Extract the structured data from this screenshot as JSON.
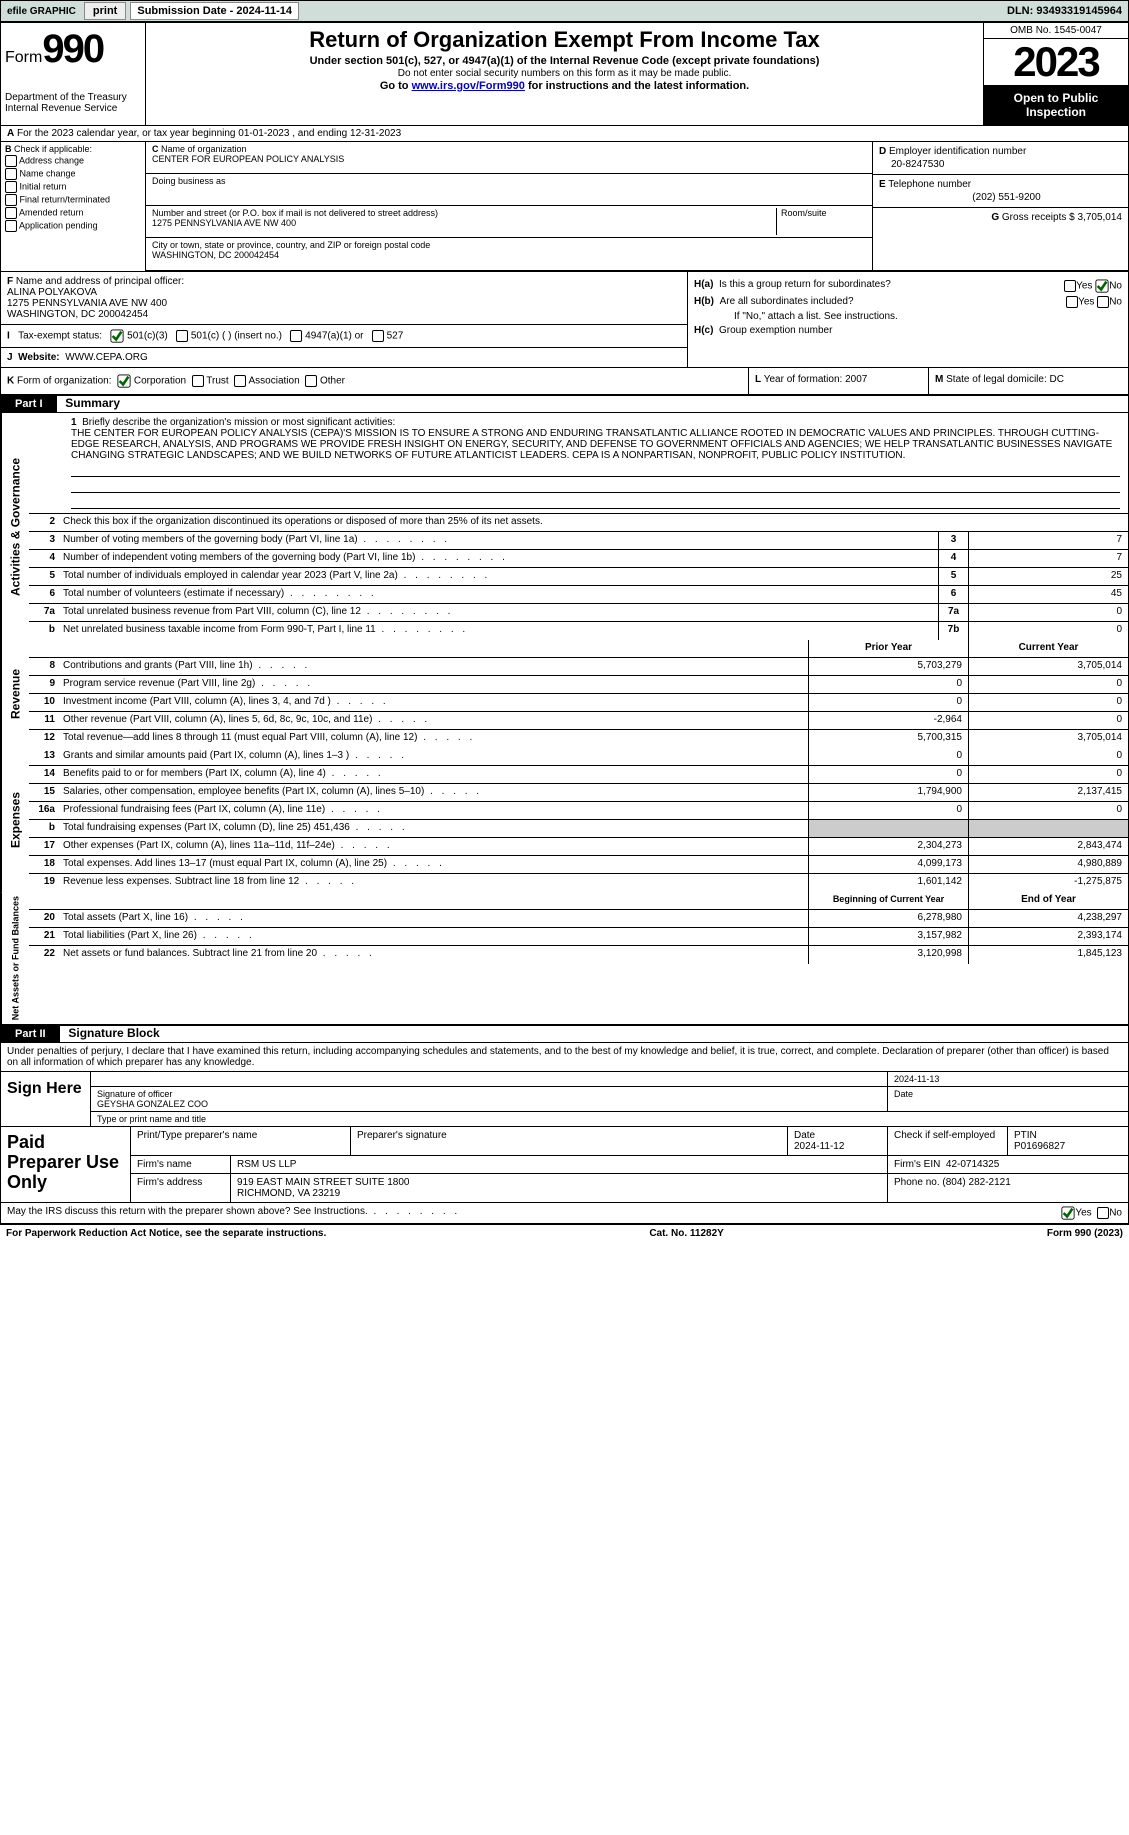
{
  "top": {
    "efile": "efile GRAPHIC",
    "print": "print",
    "sub_label": "Submission Date - 2024-11-14",
    "dln": "DLN: 93493319145964"
  },
  "hdr": {
    "form": "Form",
    "num": "990",
    "dept": "Department of the Treasury\nInternal Revenue Service",
    "title": "Return of Organization Exempt From Income Tax",
    "sub1": "Under section 501(c), 527, or 4947(a)(1) of the Internal Revenue Code (except private foundations)",
    "sub2": "Do not enter social security numbers on this form as it may be made public.",
    "sub3_pre": "Go to ",
    "sub3_link": "www.irs.gov/Form990",
    "sub3_post": " for instructions and the latest information.",
    "omb": "OMB No. 1545-0047",
    "year": "2023",
    "pub": "Open to Public Inspection"
  },
  "a": {
    "text": "For the 2023 calendar year, or tax year beginning 01-01-2023   , and ending 12-31-2023"
  },
  "b": {
    "label": "Check if applicable:",
    "items": [
      "Address change",
      "Name change",
      "Initial return",
      "Final return/terminated",
      "Amended return",
      "Application pending"
    ]
  },
  "c": {
    "name_label": "Name of organization",
    "name": "CENTER FOR EUROPEAN POLICY ANALYSIS",
    "dba_label": "Doing business as",
    "addr_label": "Number and street (or P.O. box if mail is not delivered to street address)",
    "room_label": "Room/suite",
    "addr": "1275 PENNSYLVANIA AVE NW 400",
    "city_label": "City or town, state or province, country, and ZIP or foreign postal code",
    "city": "WASHINGTON, DC  200042454"
  },
  "d": {
    "label": "Employer identification number",
    "val": "20-8247530"
  },
  "e": {
    "label": "Telephone number",
    "val": "(202) 551-9200"
  },
  "g": {
    "label": "Gross receipts $",
    "val": "3,705,014"
  },
  "f": {
    "label": "Name and address of principal officer:",
    "name": "ALINA POLYAKOVA",
    "addr1": "1275 PENNSYLVANIA AVE NW 400",
    "addr2": "WASHINGTON, DC  200042454"
  },
  "h": {
    "a": "Is this a group return for subordinates?",
    "b": "Are all subordinates included?",
    "note": "If \"No,\" attach a list. See instructions.",
    "c": "Group exemption number"
  },
  "i": {
    "label": "Tax-exempt status:",
    "opts": [
      "501(c)(3)",
      "501(c) (  ) (insert no.)",
      "4947(a)(1) or",
      "527"
    ]
  },
  "j": {
    "label": "Website:",
    "val": "WWW.CEPA.ORG"
  },
  "k": {
    "label": "Form of organization:",
    "opts": [
      "Corporation",
      "Trust",
      "Association",
      "Other"
    ]
  },
  "l": {
    "label": "Year of formation:",
    "val": "2007"
  },
  "m": {
    "label": "State of legal domicile:",
    "val": "DC"
  },
  "part1": {
    "hdr": "Part I",
    "title": "Summary",
    "mission_label": "Briefly describe the organization's mission or most significant activities:",
    "mission": "THE CENTER FOR EUROPEAN POLICY ANALYSIS (CEPA)'S MISSION IS TO ENSURE A STRONG AND ENDURING TRANSATLANTIC ALLIANCE ROOTED IN DEMOCRATIC VALUES AND PRINCIPLES. THROUGH CUTTING-EDGE RESEARCH, ANALYSIS, AND PROGRAMS WE PROVIDE FRESH INSIGHT ON ENERGY, SECURITY, AND DEFENSE TO GOVERNMENT OFFICIALS AND AGENCIES; WE HELP TRANSATLANTIC BUSINESSES NAVIGATE CHANGING STRATEGIC LANDSCAPES; AND WE BUILD NETWORKS OF FUTURE ATLANTICIST LEADERS. CEPA IS A NONPARTISAN, NONPROFIT, PUBLIC POLICY INSTITUTION.",
    "l2": "Check this box      if the organization discontinued its operations or disposed of more than 25% of its net assets.",
    "side": {
      "ag": "Activities & Governance",
      "rev": "Revenue",
      "exp": "Expenses",
      "na": "Net Assets or Fund Balances"
    },
    "rows_ag": [
      {
        "n": "3",
        "t": "Number of voting members of the governing body (Part VI, line 1a)",
        "b": "3",
        "v": "7"
      },
      {
        "n": "4",
        "t": "Number of independent voting members of the governing body (Part VI, line 1b)",
        "b": "4",
        "v": "7"
      },
      {
        "n": "5",
        "t": "Total number of individuals employed in calendar year 2023 (Part V, line 2a)",
        "b": "5",
        "v": "25"
      },
      {
        "n": "6",
        "t": "Total number of volunteers (estimate if necessary)",
        "b": "6",
        "v": "45"
      },
      {
        "n": "7a",
        "t": "Total unrelated business revenue from Part VIII, column (C), line 12",
        "b": "7a",
        "v": "0"
      },
      {
        "n": "b",
        "t": "Net unrelated business taxable income from Form 990-T, Part I, line 11",
        "b": "7b",
        "v": "0"
      }
    ],
    "col_py": "Prior Year",
    "col_cy": "Current Year",
    "rows_rev": [
      {
        "n": "8",
        "t": "Contributions and grants (Part VIII, line 1h)",
        "py": "5,703,279",
        "cy": "3,705,014"
      },
      {
        "n": "9",
        "t": "Program service revenue (Part VIII, line 2g)",
        "py": "0",
        "cy": "0"
      },
      {
        "n": "10",
        "t": "Investment income (Part VIII, column (A), lines 3, 4, and 7d )",
        "py": "0",
        "cy": "0"
      },
      {
        "n": "11",
        "t": "Other revenue (Part VIII, column (A), lines 5, 6d, 8c, 9c, 10c, and 11e)",
        "py": "-2,964",
        "cy": "0"
      },
      {
        "n": "12",
        "t": "Total revenue—add lines 8 through 11 (must equal Part VIII, column (A), line 12)",
        "py": "5,700,315",
        "cy": "3,705,014"
      }
    ],
    "rows_exp": [
      {
        "n": "13",
        "t": "Grants and similar amounts paid (Part IX, column (A), lines 1–3 )",
        "py": "0",
        "cy": "0"
      },
      {
        "n": "14",
        "t": "Benefits paid to or for members (Part IX, column (A), line 4)",
        "py": "0",
        "cy": "0"
      },
      {
        "n": "15",
        "t": "Salaries, other compensation, employee benefits (Part IX, column (A), lines 5–10)",
        "py": "1,794,900",
        "cy": "2,137,415"
      },
      {
        "n": "16a",
        "t": "Professional fundraising fees (Part IX, column (A), line 11e)",
        "py": "0",
        "cy": "0"
      },
      {
        "n": "b",
        "t": "Total fundraising expenses (Part IX, column (D), line 25) 451,436",
        "py": "",
        "cy": "",
        "grey": true
      },
      {
        "n": "17",
        "t": "Other expenses (Part IX, column (A), lines 11a–11d, 11f–24e)",
        "py": "2,304,273",
        "cy": "2,843,474"
      },
      {
        "n": "18",
        "t": "Total expenses. Add lines 13–17 (must equal Part IX, column (A), line 25)",
        "py": "4,099,173",
        "cy": "4,980,889"
      },
      {
        "n": "19",
        "t": "Revenue less expenses. Subtract line 18 from line 12",
        "py": "1,601,142",
        "cy": "-1,275,875"
      }
    ],
    "col_by": "Beginning of Current Year",
    "col_ey": "End of Year",
    "rows_na": [
      {
        "n": "20",
        "t": "Total assets (Part X, line 16)",
        "py": "6,278,980",
        "cy": "4,238,297"
      },
      {
        "n": "21",
        "t": "Total liabilities (Part X, line 26)",
        "py": "3,157,982",
        "cy": "2,393,174"
      },
      {
        "n": "22",
        "t": "Net assets or fund balances. Subtract line 21 from line 20",
        "py": "3,120,998",
        "cy": "1,845,123"
      }
    ]
  },
  "part2": {
    "hdr": "Part II",
    "title": "Signature Block",
    "decl": "Under penalties of perjury, I declare that I have examined this return, including accompanying schedules and statements, and to the best of my knowledge and belief, it is true, correct, and complete. Declaration of preparer (other than officer) is based on all information of which preparer has any knowledge.",
    "sign_here": "Sign Here",
    "sig_officer": "Signature of officer",
    "sig_date": "2024-11-13",
    "date_label": "Date",
    "officer": "GEYSHA GONZALEZ COO",
    "officer_label": "Type or print name and title",
    "paid": "Paid Preparer Use Only",
    "prep_name_label": "Print/Type preparer's name",
    "prep_sig_label": "Preparer's signature",
    "prep_date": "2024-11-12",
    "check_self": "Check        if self-employed",
    "ptin_label": "PTIN",
    "ptin": "P01696827",
    "firm_name_label": "Firm's name",
    "firm_name": "RSM US LLP",
    "firm_ein_label": "Firm's EIN",
    "firm_ein": "42-0714325",
    "firm_addr_label": "Firm's address",
    "firm_addr1": "919 EAST MAIN STREET SUITE 1800",
    "firm_addr2": "RICHMOND, VA  23219",
    "phone_label": "Phone no.",
    "phone": "(804) 282-2121",
    "discuss": "May the IRS discuss this return with the preparer shown above? See Instructions.",
    "yes": "Yes",
    "no": "No"
  },
  "footer": {
    "l": "For Paperwork Reduction Act Notice, see the separate instructions.",
    "c": "Cat. No. 11282Y",
    "r": "Form 990 (2023)"
  },
  "colors": {
    "topbar": "#cfded8",
    "link": "#0000cc",
    "grey": "#cccccc"
  }
}
